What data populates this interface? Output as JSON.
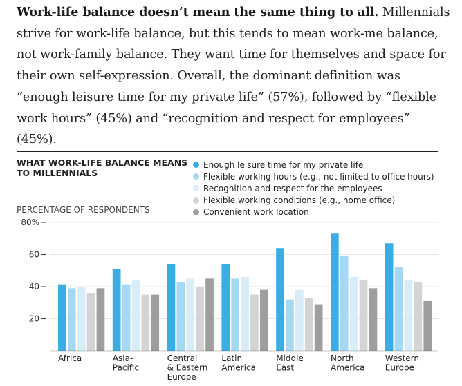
{
  "article": {
    "lead_bold": "Work-life balance doesn’t mean the same thing to all.",
    "body": " Millennials strive for work-life balance, but this tends to mean work-me balance, not work-family balance. They want time for themselves and space for their own self-expression. Overall, the dominant definition was “enough leisure time for my private life” (57%), followed by “flexible work hours” (45%) and “recognition and respect for employees” (45%)."
  },
  "chart_data": {
    "type": "bar",
    "title": "WHAT WORK-LIFE BALANCE MEANS TO MILLENNIALS",
    "ylabel": "PERCENTAGE OF RESPONDENTS",
    "ylim": [
      0,
      80
    ],
    "yticks": [
      {
        "value": 20,
        "label": "20"
      },
      {
        "value": 40,
        "label": "40"
      },
      {
        "value": 60,
        "label": "60"
      },
      {
        "value": 80,
        "label": "80%"
      }
    ],
    "categories": [
      [
        "Africa"
      ],
      [
        "Asia-",
        "Pacific"
      ],
      [
        "Central",
        "& Eastern",
        "Europe"
      ],
      [
        "Latin",
        "America"
      ],
      [
        "Middle",
        "East"
      ],
      [
        "North",
        "America"
      ],
      [
        "Western",
        "Europe"
      ]
    ],
    "series": [
      {
        "name": "Enough leisure time for my private life",
        "color": "#3aaee4",
        "values": [
          41,
          51,
          54,
          54,
          64,
          73,
          67
        ]
      },
      {
        "name": "Flexible working hours (e.g., not limited to office hours)",
        "color": "#a5d8f2",
        "values": [
          39,
          41,
          43,
          45,
          32,
          59,
          52
        ]
      },
      {
        "name": "Recognition and respect for the employees",
        "color": "#d9edf9",
        "values": [
          40,
          44,
          45,
          46,
          38,
          46,
          44
        ]
      },
      {
        "name": "Flexible working conditions (e.g., home office)",
        "color": "#d4d4d4",
        "values": [
          36,
          35,
          40,
          35,
          33,
          44,
          43
        ]
      },
      {
        "name": "Convenient work location",
        "color": "#9e9e9e",
        "values": [
          39,
          35,
          45,
          38,
          29,
          39,
          31
        ]
      }
    ]
  }
}
